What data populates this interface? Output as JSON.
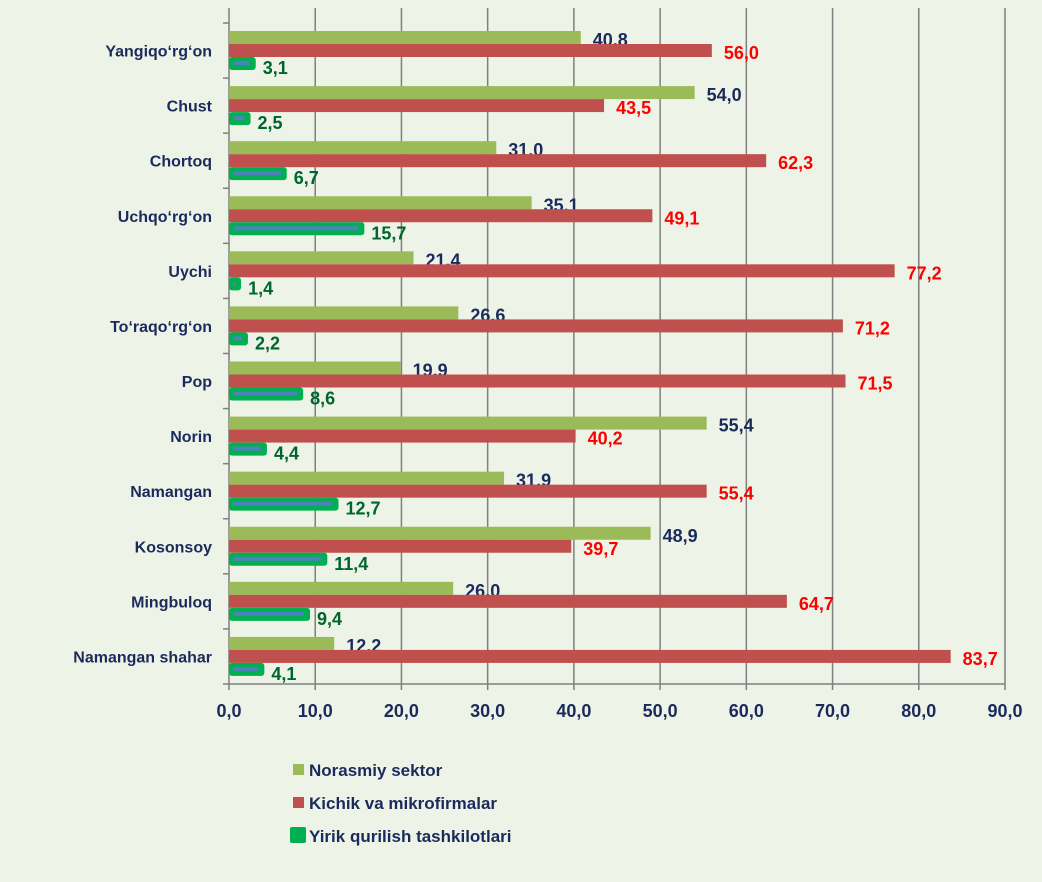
{
  "chart_data": {
    "type": "bar",
    "orientation": "horizontal",
    "categories": [
      "Yangiqo‘rg‘on",
      "Chust",
      "Chortoq",
      "Uchqo‘rg‘on",
      "Uychi",
      "To‘raqo‘rg‘on",
      "Pop",
      "Norin",
      "Namangan",
      "Kosonsoy",
      "Mingbuloq",
      "Namangan shahar"
    ],
    "series": [
      {
        "name": "Norasmiy sektor",
        "color": "#9bbb59",
        "label_color": "#1b2a5c",
        "values": [
          40.8,
          54.0,
          31.0,
          35.1,
          21.4,
          26.6,
          19.9,
          55.4,
          31.9,
          48.9,
          26.0,
          12.2
        ],
        "labels": [
          "40,8",
          "54,0",
          "31,0",
          "35,1",
          "21,4",
          "26,6",
          "19,9",
          "55,4",
          "31,9",
          "48,9",
          "26,0",
          "12,2"
        ]
      },
      {
        "name": "Kichik va mikrofirmalar",
        "color": "#c0504d",
        "label_color": "#ff0000",
        "values": [
          56.0,
          43.5,
          62.3,
          49.1,
          77.2,
          71.2,
          71.5,
          40.2,
          55.4,
          39.7,
          64.7,
          83.7
        ],
        "labels": [
          "56,0",
          "43,5",
          "62,3",
          "49,1",
          "77,2",
          "71,2",
          "71,5",
          "40,2",
          "55,4",
          "39,7",
          "64,7",
          "83,7"
        ]
      },
      {
        "name": "Yirik qurilish tashkilotlari",
        "color": "#00b050",
        "label_color": "#00642d",
        "values": [
          3.1,
          2.5,
          6.7,
          15.7,
          1.4,
          2.2,
          8.6,
          4.4,
          12.7,
          11.4,
          9.4,
          4.1
        ],
        "labels": [
          "3,1",
          "2,5",
          "6,7",
          "15,7",
          "1,4",
          "2,2",
          "8,6",
          "4,4",
          "12,7",
          "11,4",
          "9,4",
          "4,1"
        ]
      }
    ],
    "xlim": [
      0,
      90
    ],
    "xticks": [
      "0,0",
      "10,0",
      "20,0",
      "30,0",
      "40,0",
      "50,0",
      "60,0",
      "70,0",
      "80,0",
      "90,0"
    ],
    "grid": true,
    "legend_position": "bottom",
    "title": "",
    "xlabel": "",
    "ylabel": ""
  }
}
